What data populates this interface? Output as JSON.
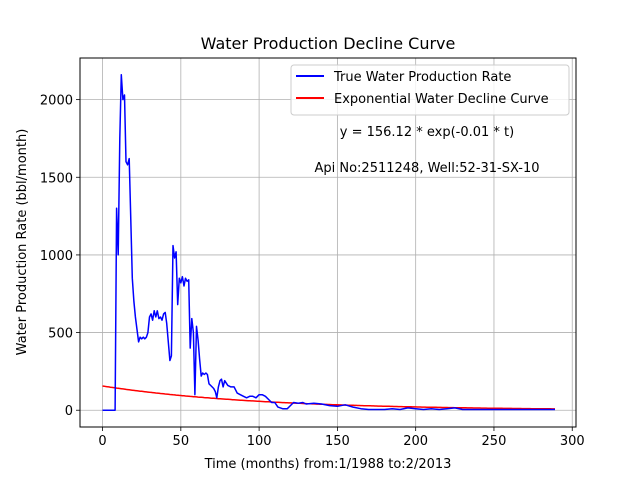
{
  "chart_data": {
    "type": "line",
    "title": "Water Production Decline Curve",
    "xlabel": "Time (months) from:1/1988 to:2/2013",
    "ylabel": "Water Production Rate (bbl/month)",
    "xlim": [
      -14.4,
      302.4
    ],
    "ylim": [
      -108,
      2268
    ],
    "xticks": [
      0,
      50,
      100,
      150,
      200,
      250,
      300
    ],
    "yticks": [
      0,
      500,
      1000,
      1500,
      2000
    ],
    "grid": true,
    "legend_position": "top-right",
    "annotations": [
      "y = 156.12 * exp(-0.01 * t)",
      "Api No:2511248, Well:52-31-SX-10"
    ],
    "series": [
      {
        "name": "True Water Production Rate",
        "color": "#0000ff",
        "x": [
          0,
          1,
          2,
          3,
          4,
          5,
          6,
          7,
          8,
          9,
          10,
          11,
          12,
          13,
          14,
          15,
          16,
          17,
          18,
          19,
          20,
          21,
          22,
          23,
          24,
          25,
          26,
          27,
          28,
          29,
          30,
          31,
          32,
          33,
          34,
          35,
          36,
          37,
          38,
          39,
          40,
          41,
          42,
          43,
          44,
          45,
          46,
          47,
          48,
          49,
          50,
          51,
          52,
          53,
          54,
          55,
          56,
          57,
          58,
          59,
          60,
          61,
          62,
          63,
          64,
          65,
          66,
          67,
          68,
          69,
          70,
          71,
          72,
          73,
          74,
          75,
          76,
          77,
          78,
          80,
          82,
          84,
          86,
          88,
          90,
          92,
          94,
          96,
          98,
          100,
          102,
          104,
          106,
          108,
          110,
          112,
          115,
          118,
          120,
          122,
          125,
          128,
          130,
          135,
          140,
          145,
          150,
          155,
          160,
          165,
          170,
          175,
          180,
          185,
          190,
          195,
          200,
          205,
          210,
          215,
          220,
          225,
          230,
          235,
          240,
          245,
          250,
          255,
          260,
          265,
          270,
          275,
          280,
          285,
          289
        ],
        "values": [
          0,
          0,
          0,
          0,
          0,
          0,
          0,
          0,
          0,
          1300,
          1000,
          1750,
          2160,
          2000,
          2030,
          1600,
          1580,
          1620,
          1250,
          850,
          700,
          600,
          520,
          440,
          470,
          460,
          470,
          460,
          470,
          500,
          600,
          620,
          580,
          640,
          600,
          640,
          590,
          600,
          580,
          620,
          630,
          560,
          440,
          320,
          350,
          1060,
          980,
          1020,
          680,
          850,
          820,
          860,
          800,
          850,
          830,
          840,
          400,
          590,
          500,
          100,
          540,
          450,
          330,
          220,
          240,
          230,
          240,
          230,
          170,
          160,
          150,
          140,
          120,
          80,
          150,
          190,
          200,
          150,
          190,
          160,
          150,
          150,
          110,
          100,
          90,
          80,
          90,
          90,
          80,
          100,
          100,
          90,
          70,
          50,
          50,
          20,
          10,
          10,
          30,
          50,
          45,
          50,
          40,
          45,
          40,
          30,
          25,
          35,
          20,
          10,
          5,
          5,
          5,
          10,
          5,
          15,
          10,
          5,
          10,
          5,
          10,
          15,
          5,
          5,
          5,
          5,
          5,
          5,
          5,
          5,
          5,
          5,
          5,
          5,
          5
        ]
      },
      {
        "name": "Exponential Water Decline Curve",
        "color": "#ff0000",
        "equation": "y = 156.12 * exp(-0.01 * t)",
        "x_start": 0,
        "x_end": 289
      }
    ]
  }
}
